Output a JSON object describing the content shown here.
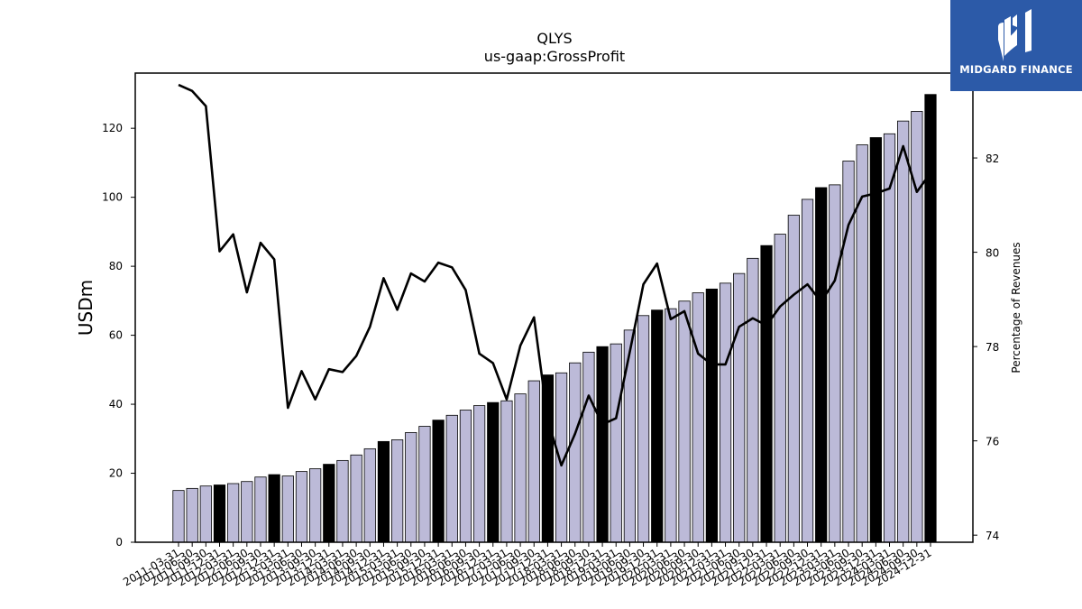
{
  "chart_data": {
    "type": "bar",
    "title": "QLYS",
    "subtitle": "us-gaap:GrossProfit",
    "ylabel": "USDm",
    "y2label": "Percentage of Revenues",
    "ylim": [
      0,
      136
    ],
    "y2lim": [
      73.85,
      83.8
    ],
    "yticks": [
      0,
      20,
      40,
      60,
      80,
      100,
      120
    ],
    "y2ticks": [
      74,
      76,
      78,
      80,
      82
    ],
    "bar_color": "#bcbad8",
    "highlight_color": "#000000",
    "line_color": "#000000",
    "categories": [
      "2011-03-31",
      "2011-06-30",
      "2011-09-30",
      "2011-12-31",
      "2012-03-31",
      "2012-06-30",
      "2012-09-30",
      "2012-12-31",
      "2013-03-31",
      "2013-06-30",
      "2013-09-30",
      "2013-12-31",
      "2014-03-31",
      "2014-06-30",
      "2014-09-30",
      "2014-12-31",
      "2015-03-31",
      "2015-06-30",
      "2015-09-30",
      "2015-12-31",
      "2016-03-31",
      "2016-06-30",
      "2016-09-30",
      "2016-12-31",
      "2017-03-31",
      "2017-06-30",
      "2017-09-30",
      "2017-12-31",
      "2018-03-31",
      "2018-06-30",
      "2018-09-30",
      "2018-12-31",
      "2019-03-31",
      "2019-06-30",
      "2019-09-30",
      "2019-12-31",
      "2020-03-31",
      "2020-06-30",
      "2020-09-30",
      "2020-12-31",
      "2021-03-31",
      "2021-06-30",
      "2021-09-30",
      "2021-12-31",
      "2022-03-31",
      "2022-06-30",
      "2022-09-30",
      "2022-12-31",
      "2023-03-31",
      "2023-06-30",
      "2023-09-30",
      "2023-12-31",
      "2024-03-31",
      "2024-06-30",
      "2024-09-30",
      "2024-12-31"
    ],
    "highlight_quarters": [
      "2011-12-31",
      "2012-12-31",
      "2013-12-31",
      "2014-12-31",
      "2015-12-31",
      "2016-12-31",
      "2017-12-31",
      "2018-12-31",
      "2019-12-31",
      "2020-12-31",
      "2021-12-31",
      "2022-12-31",
      "2023-12-31",
      "2024-12-31"
    ],
    "values": [
      15.0,
      15.6,
      16.3,
      16.6,
      17.0,
      17.6,
      18.9,
      19.6,
      19.2,
      20.5,
      21.3,
      22.6,
      23.7,
      25.3,
      27.1,
      29.2,
      29.7,
      31.8,
      33.6,
      35.4,
      36.8,
      38.3,
      39.6,
      40.5,
      41.0,
      43.0,
      46.8,
      48.5,
      49.1,
      52.0,
      55.1,
      56.7,
      57.5,
      61.5,
      65.7,
      67.3,
      67.7,
      69.9,
      72.3,
      73.4,
      75.1,
      77.9,
      82.3,
      86.0,
      89.3,
      94.8,
      99.4,
      102.8,
      103.6,
      110.5,
      115.2,
      117.3,
      118.4,
      122.1,
      124.9,
      129.8
    ],
    "pct_of_revenues": [
      83.55,
      83.42,
      83.1,
      80.02,
      80.38,
      79.15,
      80.2,
      79.85,
      76.7,
      77.48,
      76.88,
      77.52,
      77.46,
      77.8,
      78.42,
      79.45,
      78.78,
      79.55,
      79.38,
      79.78,
      79.68,
      79.2,
      77.85,
      77.65,
      76.88,
      78.02,
      78.62,
      76.45,
      75.48,
      76.15,
      76.96,
      76.35,
      76.48,
      77.88,
      79.32,
      79.76,
      78.58,
      78.75,
      77.85,
      77.62,
      77.62,
      78.42,
      78.6,
      78.45,
      78.85,
      79.1,
      79.32,
      78.95,
      79.4,
      80.58,
      81.18,
      81.25,
      81.35,
      82.25,
      81.28,
      81.68
    ]
  },
  "logo": {
    "text": "MIDGARD FINANCE",
    "background": "#2c5aa8",
    "icon": "midgard-logo-icon"
  }
}
